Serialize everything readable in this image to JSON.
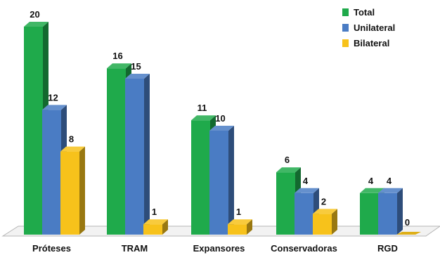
{
  "chart_data": {
    "type": "bar",
    "title": "",
    "xlabel": "",
    "ylabel": "",
    "ylim": [
      0,
      20
    ],
    "grid": false,
    "legend_position": "top-right",
    "categories": [
      "Próteses",
      "TRAM",
      "Expansores",
      "Conservadoras",
      "RGD"
    ],
    "series": [
      {
        "name": "Total",
        "color": "#1faa4b",
        "values": [
          20,
          16,
          11,
          6,
          4
        ]
      },
      {
        "name": "Unilateral",
        "color": "#4a7cc4",
        "values": [
          12,
          15,
          10,
          4,
          4
        ]
      },
      {
        "name": "Bilateral",
        "color": "#f7c21b",
        "values": [
          8,
          1,
          1,
          2,
          0
        ]
      }
    ]
  }
}
